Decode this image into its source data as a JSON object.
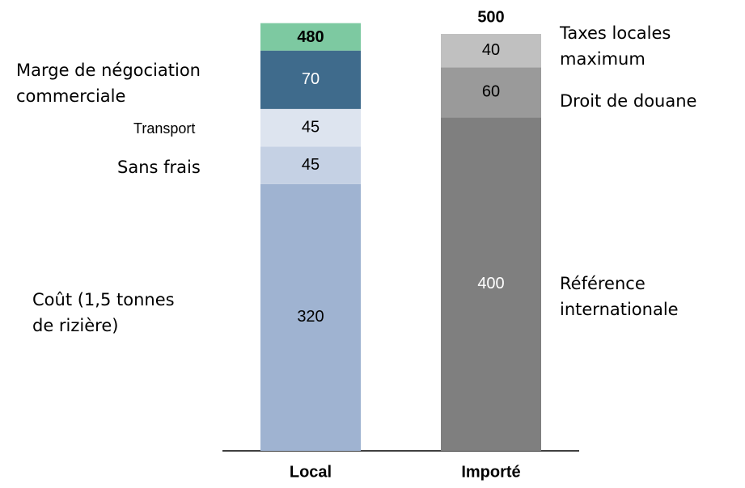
{
  "chart_data": {
    "type": "stacked_bar",
    "categories": [
      "Local",
      "Importé"
    ],
    "series": [
      {
        "name": "Coût (1,5 tonnes de rizière)",
        "color": "#9fb3d1",
        "values": [
          320,
          null
        ]
      },
      {
        "name": "Sans frais",
        "color": "#c5d1e4",
        "values": [
          45,
          null
        ]
      },
      {
        "name": "Transport",
        "color": "#dde4ef",
        "values": [
          45,
          null
        ]
      },
      {
        "name": "Marge de négociation commerciale",
        "color": "#3f6b8c",
        "values": [
          70,
          null
        ]
      },
      {
        "name": "Référence internationale",
        "color": "#7f7f7f",
        "values": [
          null,
          400
        ]
      },
      {
        "name": "Droit de douane",
        "color": "#9a9a9a",
        "values": [
          null,
          60
        ]
      },
      {
        "name": "Taxes locales maximum",
        "color": "#c0c0c0",
        "values": [
          null,
          40
        ]
      }
    ],
    "totals": [
      480,
      500
    ],
    "totals_color": [
      "#7dc9a1",
      null
    ]
  }
}
